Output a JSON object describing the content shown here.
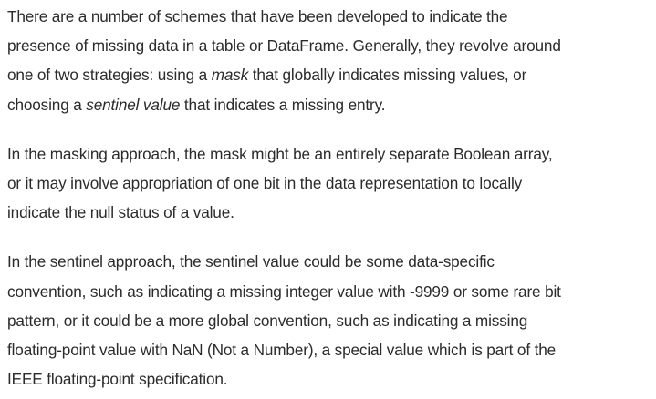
{
  "paragraphs": [
    {
      "lines": [
        {
          "parts": [
            "There are a number of schemes that have been developed to indicate the"
          ]
        },
        {
          "parts": [
            "presence of missing data in a table or DataFrame. Generally, they revolve around"
          ]
        },
        {
          "parts": [
            "one of two strategies: using a ",
            "mask",
            " that globally indicates missing values, or"
          ]
        },
        {
          "parts": [
            "choosing a ",
            "sentinel value",
            " that indicates a missing entry."
          ]
        }
      ]
    },
    {
      "lines": [
        {
          "parts": [
            "In the masking approach, the mask might be an entirely separate Boolean array,"
          ]
        },
        {
          "parts": [
            "or it may involve appropriation of one bit in the data representation to locally"
          ]
        },
        {
          "parts": [
            "indicate the null status of a value."
          ]
        }
      ]
    },
    {
      "lines": [
        {
          "parts": [
            "In the sentinel approach, the sentinel value could be some data-specific"
          ]
        },
        {
          "parts": [
            "convention, such as indicating a missing integer value with -9999 or some rare bit"
          ]
        },
        {
          "parts": [
            "pattern, or it could be a more global convention, such as indicating a missing"
          ]
        },
        {
          "parts": [
            "floating-point value with NaN (Not a Number), a special value which is part of the"
          ]
        },
        {
          "parts": [
            "IEEE floating-point specification."
          ]
        }
      ]
    }
  ]
}
